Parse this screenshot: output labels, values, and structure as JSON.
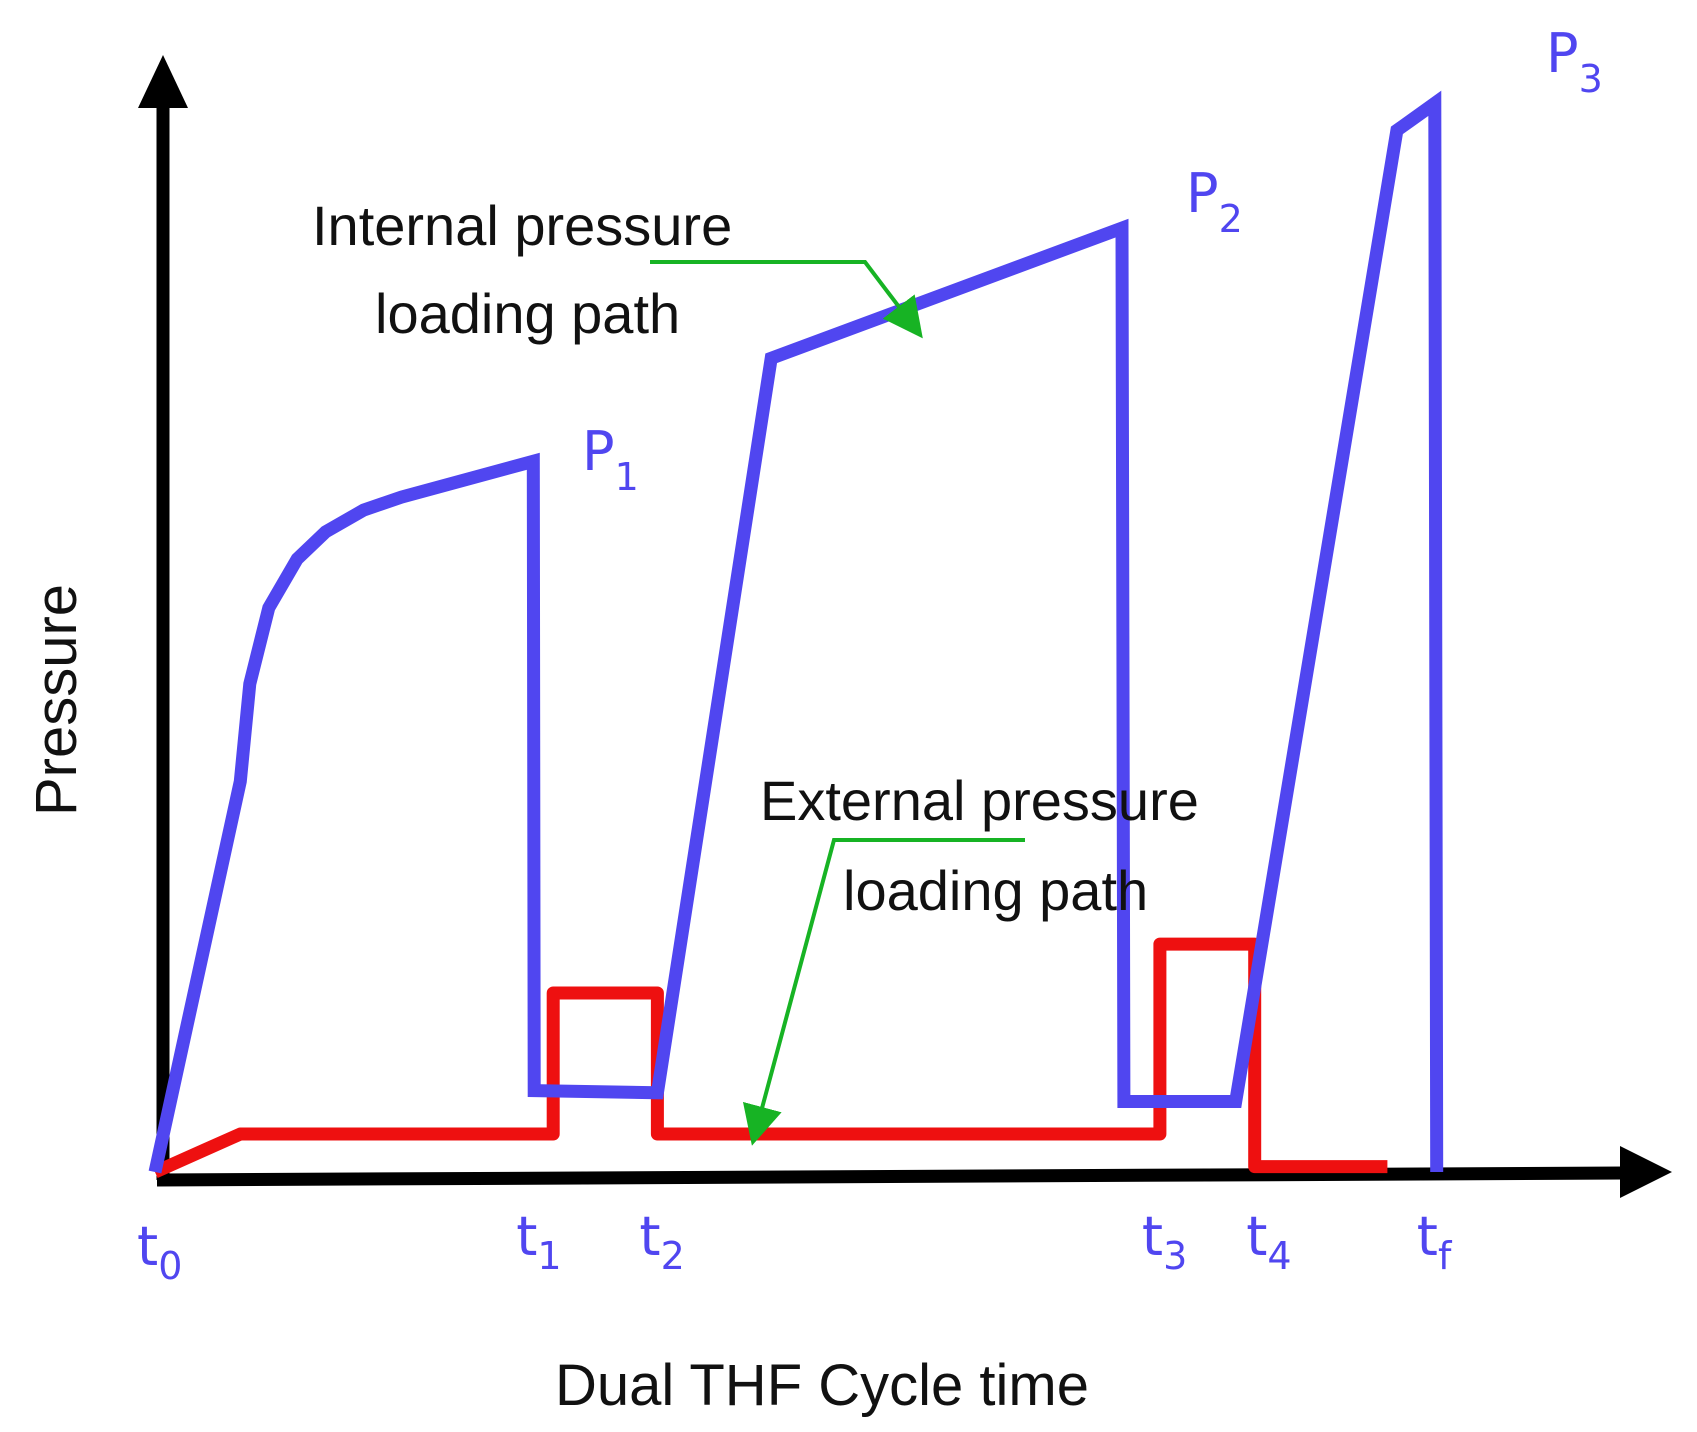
{
  "chart_data": {
    "type": "line",
    "xlabel": "Dual THF Cycle time",
    "ylabel": "Pressure",
    "x_ticks": [
      {
        "base": "t",
        "sub": "0",
        "x": 0
      },
      {
        "base": "t",
        "sub": "1",
        "x": 4
      },
      {
        "base": "t",
        "sub": "2",
        "x": 5.3
      },
      {
        "base": "t",
        "sub": "3",
        "x": 10.6
      },
      {
        "base": "t",
        "sub": "4",
        "x": 11.7
      },
      {
        "base": "t",
        "sub": "f",
        "x": 13.5
      }
    ],
    "xlim": [
      0,
      15
    ],
    "ylim": [
      0,
      100
    ],
    "grid": false,
    "series": [
      {
        "role": "internal",
        "color": "#5046f0",
        "points": [
          [
            0,
            0
          ],
          [
            0.9,
            36
          ],
          [
            1.0,
            45
          ],
          [
            1.2,
            52
          ],
          [
            1.5,
            56.5
          ],
          [
            1.8,
            59
          ],
          [
            2.2,
            61
          ],
          [
            2.6,
            62.2
          ],
          [
            3.99,
            65.5
          ],
          [
            4.0,
            7.5
          ],
          [
            5.3,
            7.3
          ],
          [
            6.5,
            75
          ],
          [
            10.2,
            87
          ],
          [
            10.22,
            6.5
          ],
          [
            11.4,
            6.5
          ],
          [
            13.1,
            96
          ],
          [
            13.5,
            98.5
          ],
          [
            13.52,
            0
          ]
        ],
        "peaks": [
          {
            "base": "P",
            "sub": "1",
            "x": 4.0,
            "y": 65.5
          },
          {
            "base": "P",
            "sub": "2",
            "x": 10.2,
            "y": 87
          },
          {
            "base": "P",
            "sub": "3",
            "x": 13.5,
            "y": 98.5
          }
        ]
      },
      {
        "role": "external",
        "color": "#ee1010",
        "points": [
          [
            0,
            0
          ],
          [
            0.9,
            3.5
          ],
          [
            4.2,
            3.5
          ],
          [
            4.2,
            16.5
          ],
          [
            5.3,
            16.5
          ],
          [
            5.3,
            3.5
          ],
          [
            10.6,
            3.5
          ],
          [
            10.6,
            21
          ],
          [
            11.6,
            21
          ],
          [
            11.6,
            0.5
          ],
          [
            13.0,
            0.5
          ]
        ]
      }
    ],
    "annotations": [
      {
        "lines": [
          "Internal pressure",
          "loading path"
        ],
        "target": [
          6.8,
          79.5
        ]
      },
      {
        "lines": [
          "External  pressure",
          "loading path"
        ],
        "target": [
          5.7,
          3.5
        ]
      }
    ],
    "colors": {
      "axis": "#000000",
      "arrow": "#17b324",
      "tick_label": "#5046f0"
    }
  }
}
